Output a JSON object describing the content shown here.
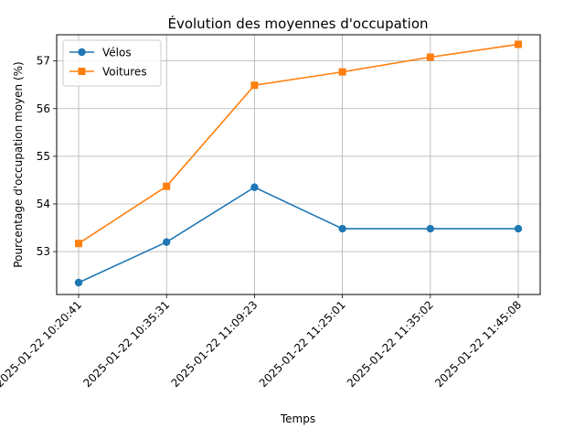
{
  "chart_data": {
    "type": "line",
    "title": "Évolution des moyennes d'occupation",
    "xlabel": "Temps",
    "ylabel": "Pourcentage d'occupation moyen (%)",
    "categories": [
      "2025-01-22 10:20:41",
      "2025-01-22 10:35:31",
      "2025-01-22 11:09:23",
      "2025-01-22 11:25:01",
      "2025-01-22 11:35:02",
      "2025-01-22 11:45:08"
    ],
    "series": [
      {
        "name": "Vélos",
        "values": [
          52.35,
          53.2,
          54.35,
          53.48,
          53.48,
          53.48
        ],
        "color": "#1f77b4",
        "marker": "circle"
      },
      {
        "name": "Voitures",
        "values": [
          53.17,
          54.37,
          56.49,
          56.77,
          57.08,
          57.35
        ],
        "color": "#ff7f0e",
        "marker": "square"
      }
    ],
    "ylim": [
      52.1,
      57.55
    ],
    "yticks": [
      53,
      54,
      55,
      56,
      57
    ],
    "grid": true,
    "legend": "top-left"
  }
}
